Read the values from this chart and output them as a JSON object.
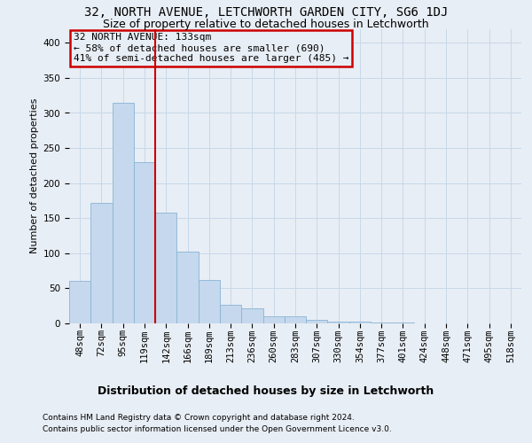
{
  "title1": "32, NORTH AVENUE, LETCHWORTH GARDEN CITY, SG6 1DJ",
  "title2": "Size of property relative to detached houses in Letchworth",
  "xlabel": "Distribution of detached houses by size in Letchworth",
  "ylabel": "Number of detached properties",
  "categories": [
    "48sqm",
    "72sqm",
    "95sqm",
    "119sqm",
    "142sqm",
    "166sqm",
    "189sqm",
    "213sqm",
    "236sqm",
    "260sqm",
    "283sqm",
    "307sqm",
    "330sqm",
    "354sqm",
    "377sqm",
    "401sqm",
    "424sqm",
    "448sqm",
    "471sqm",
    "495sqm",
    "518sqm"
  ],
  "values": [
    61,
    172,
    315,
    230,
    158,
    102,
    62,
    27,
    22,
    10,
    10,
    5,
    3,
    2,
    1,
    1,
    0,
    0,
    0,
    0,
    0
  ],
  "bar_color": "#c5d8ed",
  "bar_edge_color": "#8ab4d4",
  "grid_color": "#c8d8ea",
  "vline_color": "#cc0000",
  "vline_x": 3.5,
  "annotation_line1": "32 NORTH AVENUE: 133sqm",
  "annotation_line2": "← 58% of detached houses are smaller (690)",
  "annotation_line3": "41% of semi-detached houses are larger (485) →",
  "annotation_box_edgecolor": "#cc0000",
  "footer1": "Contains HM Land Registry data © Crown copyright and database right 2024.",
  "footer2": "Contains public sector information licensed under the Open Government Licence v3.0.",
  "ylim": [
    0,
    420
  ],
  "yticks": [
    0,
    50,
    100,
    150,
    200,
    250,
    300,
    350,
    400
  ],
  "background_color": "#e8eef5",
  "title1_fontsize": 10,
  "title2_fontsize": 9,
  "xlabel_fontsize": 9,
  "ylabel_fontsize": 8,
  "tick_fontsize": 7.5,
  "footer_fontsize": 6.5,
  "ann_fontsize": 8
}
